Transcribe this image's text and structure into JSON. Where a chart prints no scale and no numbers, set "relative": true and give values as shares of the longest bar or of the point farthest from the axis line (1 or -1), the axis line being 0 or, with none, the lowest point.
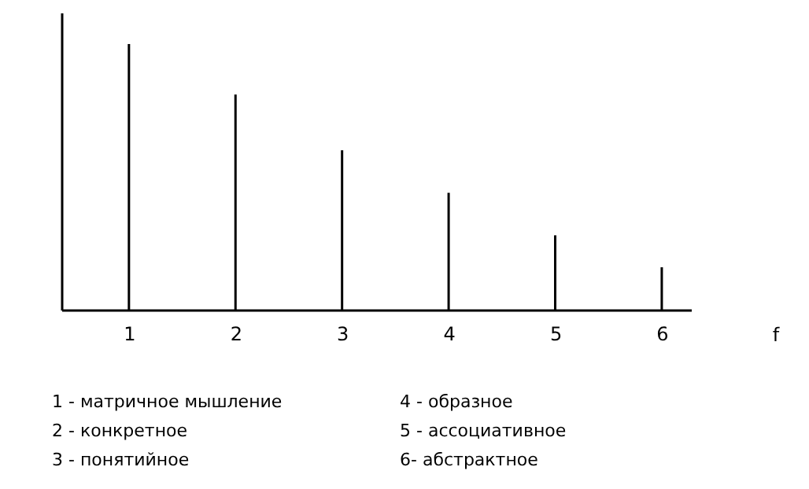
{
  "chart_data": {
    "type": "bar",
    "relative": true,
    "x": [
      1,
      2,
      3,
      4,
      5,
      6
    ],
    "values": [
      1,
      0.81,
      0.6,
      0.44,
      0.28,
      0.16
    ],
    "color": "#000000",
    "xlim": [
      0.44,
      6.2
    ],
    "xticks": [
      1,
      2,
      3,
      4,
      5,
      6
    ],
    "xlabel": "f",
    "grid": false,
    "annotations": [
      "1 - матричное мышление",
      "2 - конкретное",
      "3 - понятийное",
      "4 - образное",
      "5 - ассоциативное",
      "6- абстрактное"
    ]
  }
}
